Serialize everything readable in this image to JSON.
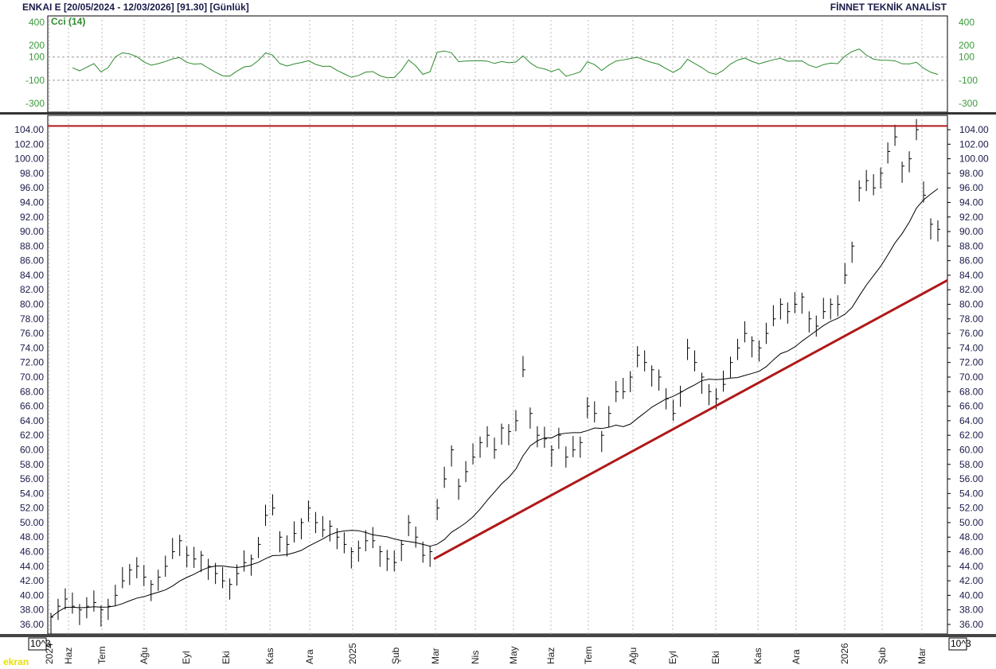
{
  "header": {
    "title": "ENKAI E  [20/05/2024 - 12/03/2026]  [91.30]  [Günlük]",
    "brand": "FİNNET TEKNİK ANALİST"
  },
  "watermark": "ekran",
  "corner_label": "10^3",
  "chart_data": [
    {
      "type": "line",
      "title": "Cci (14)",
      "ylim": [
        -300,
        400
      ],
      "yticks": [
        400,
        200,
        100,
        -100,
        -300
      ],
      "reference_lines": [
        100,
        -100
      ],
      "color": "#2e8b2e"
    },
    {
      "type": "bar",
      "subtype": "ohlc",
      "title": "ENKAI E",
      "ylim": [
        36,
        104
      ],
      "ytick_step": 2,
      "x_labels": [
        "2024",
        "Haz",
        "Tem",
        "Ağu",
        "Eyl",
        "Eki",
        "Kas",
        "Ara",
        "2025",
        "Şub",
        "Mar",
        "Nis",
        "May",
        "Haz",
        "Tem",
        "Ağu",
        "Eyl",
        "Eki",
        "Kas",
        "Ara",
        "2026",
        "Şub",
        "Mar"
      ],
      "closes": [
        37,
        38.5,
        39.5,
        38.5,
        38,
        38.5,
        39,
        38,
        38.5,
        40,
        42,
        43.5,
        44,
        42.5,
        41.5,
        42.5,
        44,
        46,
        47.5,
        45.5,
        45,
        45.5,
        44,
        43,
        42,
        41.5,
        43,
        44.5,
        45,
        47,
        51,
        52,
        48,
        47,
        48.5,
        50,
        52,
        50,
        49,
        49.5,
        48,
        47,
        46,
        46.5,
        47.5,
        47.5,
        46,
        45,
        44.5,
        47,
        50,
        48,
        45.5,
        46,
        52,
        56,
        60,
        55,
        57,
        59,
        61,
        62,
        60,
        63,
        62.5,
        64,
        71,
        65,
        62,
        61.5,
        60,
        62,
        59,
        60,
        61,
        66,
        65,
        62,
        65,
        68,
        68,
        70,
        73,
        72,
        71,
        70,
        67,
        65,
        68,
        74,
        72,
        70,
        68,
        67,
        69,
        72,
        74,
        76,
        75,
        74,
        76,
        78,
        80,
        79,
        80,
        81,
        78,
        77,
        79,
        80,
        80,
        84,
        88,
        96,
        97,
        96,
        98,
        101,
        103,
        99,
        100,
        104,
        95,
        91,
        90.3
      ],
      "moving_average_period": 14,
      "resistance_level": 104.5,
      "trendline": {
        "from": {
          "date": "Mar 2025",
          "value": 45
        },
        "to": {
          "date": "Mar 2026",
          "value": 83
        }
      },
      "last_close": 91.3
    }
  ]
}
